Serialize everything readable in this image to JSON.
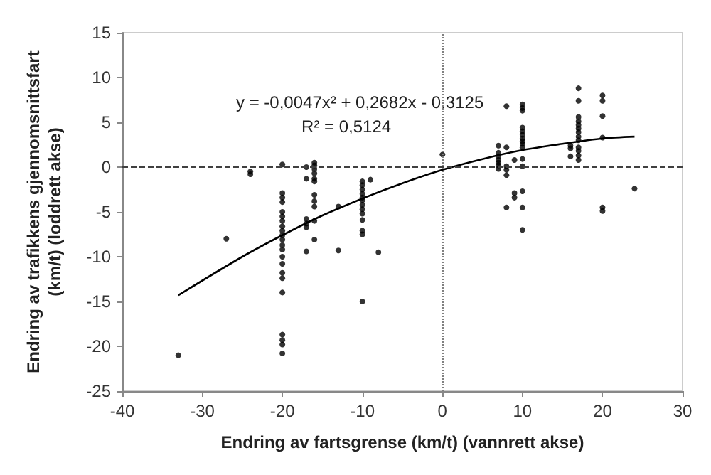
{
  "chart_data": {
    "type": "scatter",
    "xlabel": "Endring av fartsgrense (km/t) (vannrett akse)",
    "ylabel": "Endring av trafikkens gjennomsnittsfart (km/t) (loddrett akse)",
    "xlim": [
      -40,
      30
    ],
    "xticks": [
      -40,
      -30,
      -20,
      -10,
      0,
      10,
      20,
      30
    ],
    "ylim": [
      -25,
      15
    ],
    "yticks": [
      -25,
      -20,
      -15,
      -10,
      -5,
      0,
      5,
      10,
      15
    ],
    "grid": false,
    "marker": "circle",
    "annotations": [
      "y = -0,0047x² + 0,2682x - 0,3125",
      "R² = 0,5124"
    ],
    "ref_lines": [
      {
        "axis": "x",
        "value": 0,
        "color": "#808080",
        "line_style": "dotted"
      },
      {
        "axis": "y",
        "value": 0,
        "color": "#404040",
        "line_style": "dashed"
      }
    ],
    "series": [
      {
        "color": "#000000",
        "x": [
          -33,
          -27,
          -24,
          -24,
          -20,
          -20,
          -20,
          -20,
          -20,
          -20,
          -20,
          -20,
          -20,
          -20,
          -20,
          -20,
          -20,
          -20,
          -20,
          -20,
          -20,
          -20,
          -20,
          -20,
          -20,
          -20,
          -17,
          -17,
          -17,
          -17,
          -17,
          -17,
          -16,
          -16,
          -16,
          -16,
          -16,
          -16,
          -16,
          -16,
          -16,
          -16,
          -16,
          -13,
          -13,
          -10,
          -10,
          -10,
          -10,
          -10,
          -10,
          -10,
          -10,
          -10,
          -10,
          -10,
          -10,
          -10,
          -9,
          -8,
          0,
          7,
          7,
          7,
          7,
          7,
          7,
          7,
          8,
          8,
          8,
          8,
          8,
          8,
          9,
          9,
          9,
          10,
          10,
          10,
          10,
          10,
          10,
          10,
          10,
          10,
          10,
          10,
          10,
          10,
          10,
          10,
          16,
          16,
          16,
          17,
          17,
          17,
          17,
          17,
          17,
          17,
          17,
          17,
          17,
          17,
          17,
          17,
          20,
          20,
          20,
          20,
          20,
          20,
          24
        ],
        "values": [
          -21,
          -8,
          -0.5,
          -0.8,
          0.3,
          -2.9,
          -3.4,
          -3.9,
          -5,
          -5.5,
          -6,
          -6.6,
          -7.1,
          -7.6,
          -8.1,
          -8.7,
          -9.2,
          -10,
          -10.8,
          -11.8,
          -12.4,
          -14,
          -18.7,
          -19.3,
          -19.8,
          -20.8,
          0,
          -1.3,
          -5.8,
          -6.3,
          -6.7,
          -9.4,
          0.5,
          0.2,
          -0.2,
          -0.7,
          -1.3,
          -1.6,
          -3.1,
          -3.8,
          -4.4,
          -6,
          -8.1,
          -4.4,
          -9.3,
          -1.6,
          -2,
          -2.5,
          -3,
          -3.4,
          -3.7,
          -4.2,
          -4.7,
          -5.2,
          -5.9,
          -7.1,
          -7.5,
          -15,
          -1.4,
          -9.5,
          1.4,
          2.4,
          1.6,
          1.2,
          0.8,
          0.5,
          0.2,
          -0.2,
          6.8,
          2.2,
          0.1,
          -0.3,
          -0.9,
          -4.5,
          0.8,
          -2.9,
          -3.4,
          7,
          6.6,
          6.3,
          4.4,
          4,
          3.6,
          3.2,
          2.9,
          2.6,
          2.2,
          0.9,
          0.1,
          -2.7,
          -4.5,
          -7,
          2.4,
          2.1,
          1.2,
          8.8,
          7.4,
          5.6,
          5.1,
          4.7,
          4.3,
          3.9,
          3.4,
          3,
          2.2,
          1.8,
          1.3,
          0.8,
          8,
          7.4,
          5.7,
          3.3,
          -4.5,
          -4.9,
          -2.4
        ]
      },
      {
        "type": "line",
        "color": "#000000",
        "marker": "none",
        "line_style": "solid",
        "x": [
          -33,
          -25,
          -20,
          -15,
          -10,
          -5,
          0,
          5,
          10,
          15,
          20,
          24
        ],
        "values": [
          -14.3,
          -10,
          -7.6,
          -5.4,
          -3.5,
          -1.8,
          -0.3,
          0.9,
          1.9,
          2.6,
          3.2,
          3.4
        ]
      }
    ]
  }
}
